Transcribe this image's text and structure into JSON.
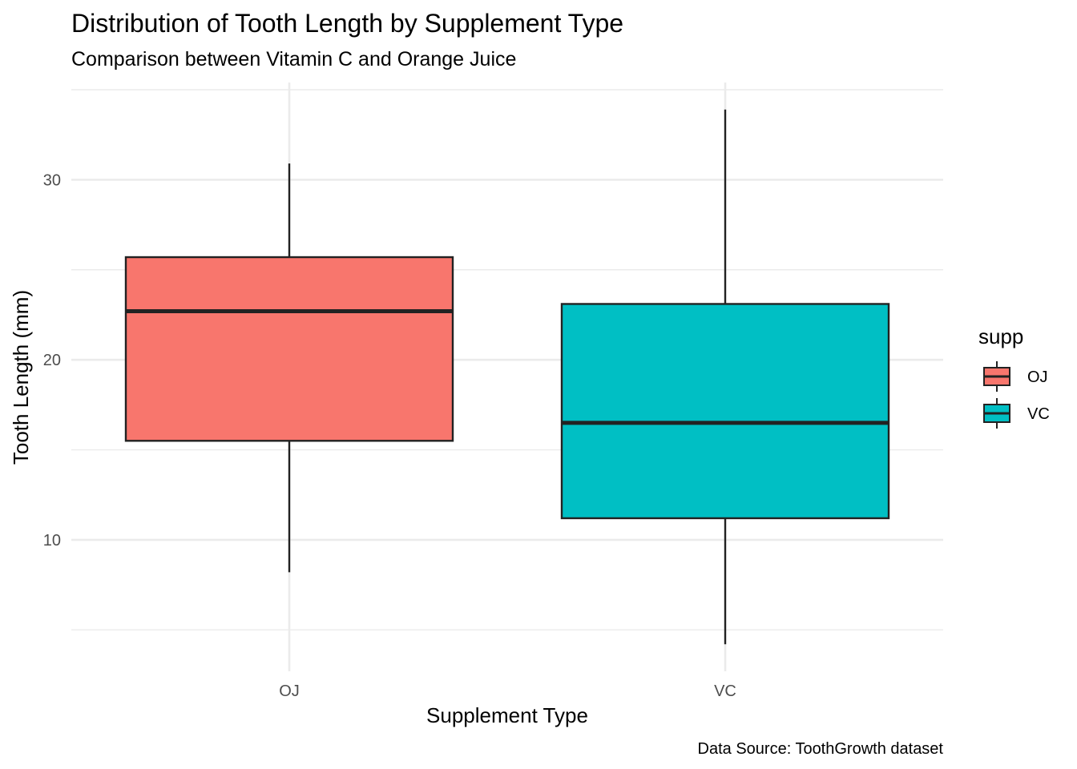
{
  "chart_data": {
    "type": "boxplot",
    "title": "Distribution of Tooth Length by Supplement Type",
    "subtitle": "Comparison between Vitamin C and Orange Juice",
    "xlabel": "Supplement Type",
    "ylabel": "Tooth Length (mm)",
    "caption": "Data Source: ToothGrowth dataset",
    "categories": [
      "OJ",
      "VC"
    ],
    "boxes": [
      {
        "category": "OJ",
        "min": 8.2,
        "q1": 15.5,
        "median": 22.7,
        "q3": 25.7,
        "max": 30.9,
        "color": "#F8766D"
      },
      {
        "category": "VC",
        "min": 4.2,
        "q1": 11.2,
        "median": 16.5,
        "q3": 23.1,
        "max": 33.9,
        "color": "#00BFC4"
      }
    ],
    "ylim": [
      2.7,
      35.4
    ],
    "yticks": [
      10,
      20,
      30
    ],
    "yticks_minor": [
      5,
      15,
      25,
      35
    ],
    "grid": true,
    "legend": {
      "title": "supp",
      "position": "right",
      "items": [
        {
          "label": "OJ",
          "color": "#F8766D"
        },
        {
          "label": "VC",
          "color": "#00BFC4"
        }
      ]
    }
  }
}
